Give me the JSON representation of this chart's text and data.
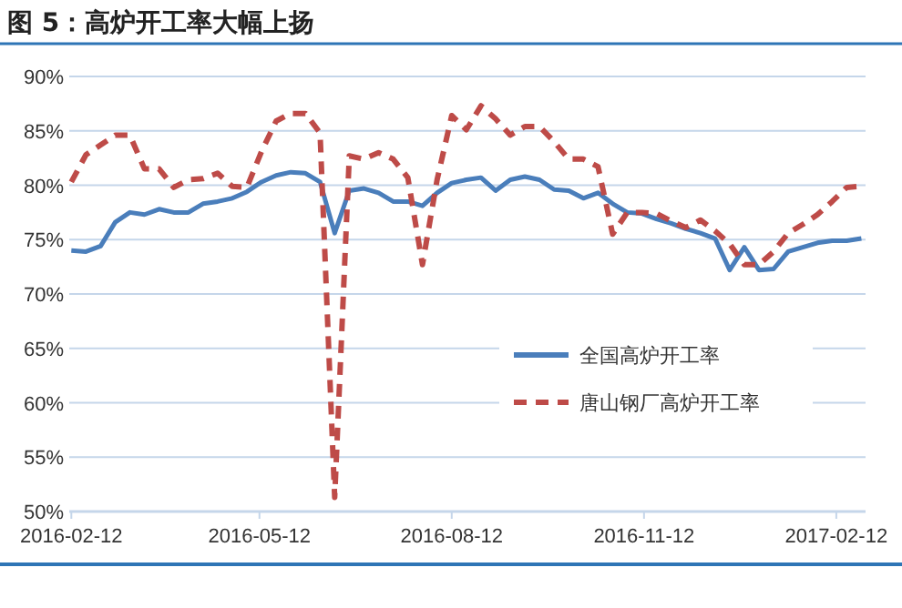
{
  "chart_data": {
    "type": "line",
    "title": "图 5：高炉开工率大幅上扬",
    "x": [
      "2016-02-12",
      "2016-02-19",
      "2016-02-26",
      "2016-03-04",
      "2016-03-11",
      "2016-03-18",
      "2016-03-25",
      "2016-04-01",
      "2016-04-08",
      "2016-04-15",
      "2016-04-22",
      "2016-04-29",
      "2016-05-06",
      "2016-05-13",
      "2016-05-20",
      "2016-05-27",
      "2016-06-03",
      "2016-06-10",
      "2016-06-17",
      "2016-06-24",
      "2016-07-01",
      "2016-07-08",
      "2016-07-15",
      "2016-07-22",
      "2016-07-29",
      "2016-08-05",
      "2016-08-12",
      "2016-08-19",
      "2016-08-26",
      "2016-09-02",
      "2016-09-09",
      "2016-09-16",
      "2016-09-23",
      "2016-09-30",
      "2016-10-07",
      "2016-10-14",
      "2016-10-21",
      "2016-10-28",
      "2016-11-04",
      "2016-11-11",
      "2016-11-18",
      "2016-11-25",
      "2016-12-02",
      "2016-12-09",
      "2016-12-16",
      "2016-12-23",
      "2016-12-30",
      "2017-01-06",
      "2017-01-13",
      "2017-01-20",
      "2017-01-27",
      "2017-02-03",
      "2017-02-10",
      "2017-02-17",
      "2017-02-24"
    ],
    "series": [
      {
        "name": "全国高炉开工率",
        "color": "#4a7ebb",
        "line_style": "solid",
        "values": [
          74.0,
          73.9,
          74.4,
          76.6,
          77.5,
          77.3,
          77.8,
          77.5,
          77.5,
          78.3,
          78.5,
          78.8,
          79.4,
          80.3,
          80.9,
          81.2,
          81.1,
          80.3,
          75.6,
          79.5,
          79.7,
          79.3,
          78.5,
          78.5,
          78.1,
          79.3,
          80.2,
          80.5,
          80.7,
          79.5,
          80.5,
          80.8,
          80.5,
          79.6,
          79.5,
          78.8,
          79.3,
          78.3,
          77.5,
          77.4,
          76.9,
          76.5,
          76.0,
          75.6,
          75.1,
          72.2,
          74.3,
          72.2,
          72.3,
          73.9,
          74.3,
          74.7,
          74.9,
          74.9,
          75.1
        ]
      },
      {
        "name": "唐山钢厂高炉开工率",
        "color": "#be4b48",
        "line_style": "dashed",
        "values": [
          80.3,
          82.8,
          83.7,
          84.6,
          84.6,
          81.5,
          81.5,
          79.8,
          80.5,
          80.6,
          81.1,
          79.9,
          79.8,
          83.1,
          85.9,
          86.6,
          86.6,
          84.8,
          51.3,
          82.7,
          82.4,
          83.0,
          82.4,
          80.7,
          72.7,
          80.5,
          86.4,
          85.1,
          87.3,
          86.1,
          84.6,
          85.4,
          85.4,
          84.0,
          82.4,
          82.4,
          81.7,
          75.5,
          77.5,
          77.5,
          77.4,
          76.7,
          76.1,
          76.8,
          75.8,
          74.6,
          72.7,
          72.7,
          73.9,
          75.6,
          76.4,
          77.3,
          78.5,
          79.8,
          79.9
        ]
      }
    ],
    "xlim": [
      "2016-02-11",
      "2017-02-26"
    ],
    "xticks": [
      "2016-02-12",
      "2016-05-12",
      "2016-08-12",
      "2016-11-12",
      "2017-02-12"
    ],
    "ylim": [
      50,
      90
    ],
    "yticks": [
      {
        "value": 50,
        "label": "50%"
      },
      {
        "value": 55,
        "label": "55%"
      },
      {
        "value": 60,
        "label": "60%"
      },
      {
        "value": 65,
        "label": "65%"
      },
      {
        "value": 70,
        "label": "70%"
      },
      {
        "value": 75,
        "label": "75%"
      },
      {
        "value": 80,
        "label": "80%"
      },
      {
        "value": 85,
        "label": "85%"
      },
      {
        "value": 90,
        "label": "90%"
      }
    ],
    "grid": "y",
    "legend": "bottom right",
    "marker": "none"
  }
}
